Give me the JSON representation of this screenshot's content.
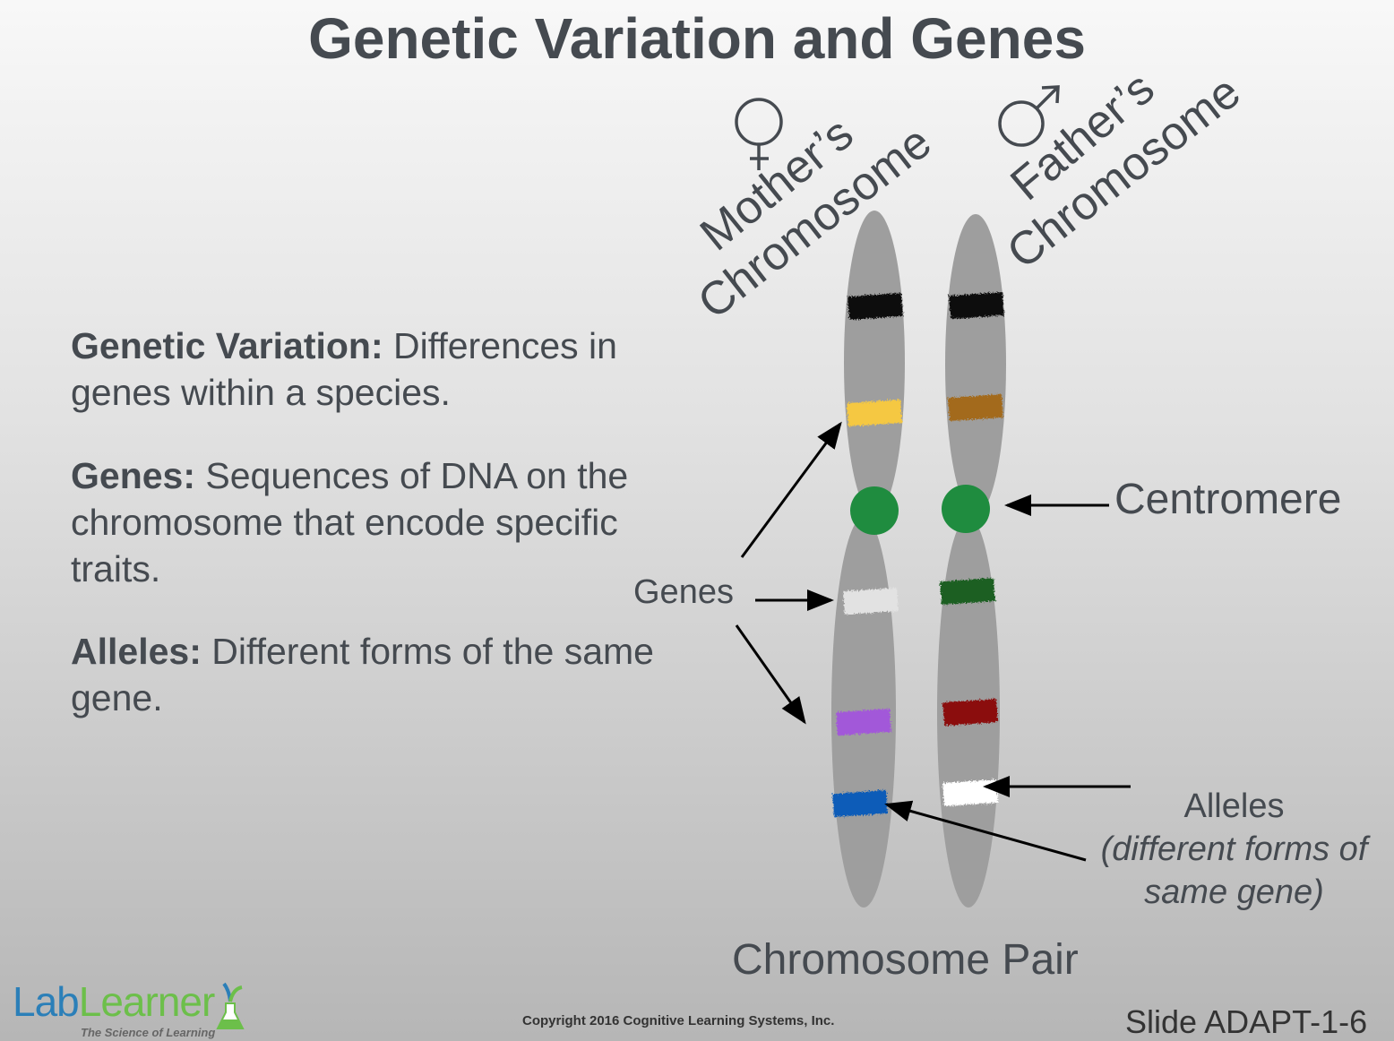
{
  "title": "Genetic Variation and Genes",
  "definitions": [
    {
      "term": "Genetic Variation:",
      "text": " Differences in genes within a species."
    },
    {
      "term": "Genes:",
      "text": " Sequences of DNA on the chromosome that encode specific traits."
    },
    {
      "term": "Alleles:",
      "text": " Different forms of the same gene."
    }
  ],
  "diagram": {
    "mother_label_1": "Mother’s",
    "mother_label_2": "Chromosome",
    "father_label_1": "Father’s",
    "father_label_2": "Chromosome",
    "mother_symbol": "female-symbol-icon",
    "father_symbol": "male-symbol-icon",
    "genes_label": "Genes",
    "centromere_label": "Centromere",
    "alleles_label": "Alleles",
    "alleles_sub": "(different forms of same gene)",
    "pair_label": "Chromosome Pair",
    "mother_bands": [
      "#111111",
      "#f5c842",
      "#e2e2e2",
      "#a259d9",
      "#0b5cb8"
    ],
    "father_bands": [
      "#111111",
      "#a36b1a",
      "#1b5e20",
      "#8b0d0d",
      "#ffffff"
    ],
    "centromere_color": "#1f8c3f",
    "chromosome_color": "#9e9e9e"
  },
  "footer": {
    "logo_lab": "Lab",
    "logo_learner": "Learner",
    "logo_tagline": "The Science of Learning",
    "copyright": "Copyright 2016 Cognitive Learning Systems, Inc.",
    "slide": "Slide ADAPT-1-6"
  }
}
